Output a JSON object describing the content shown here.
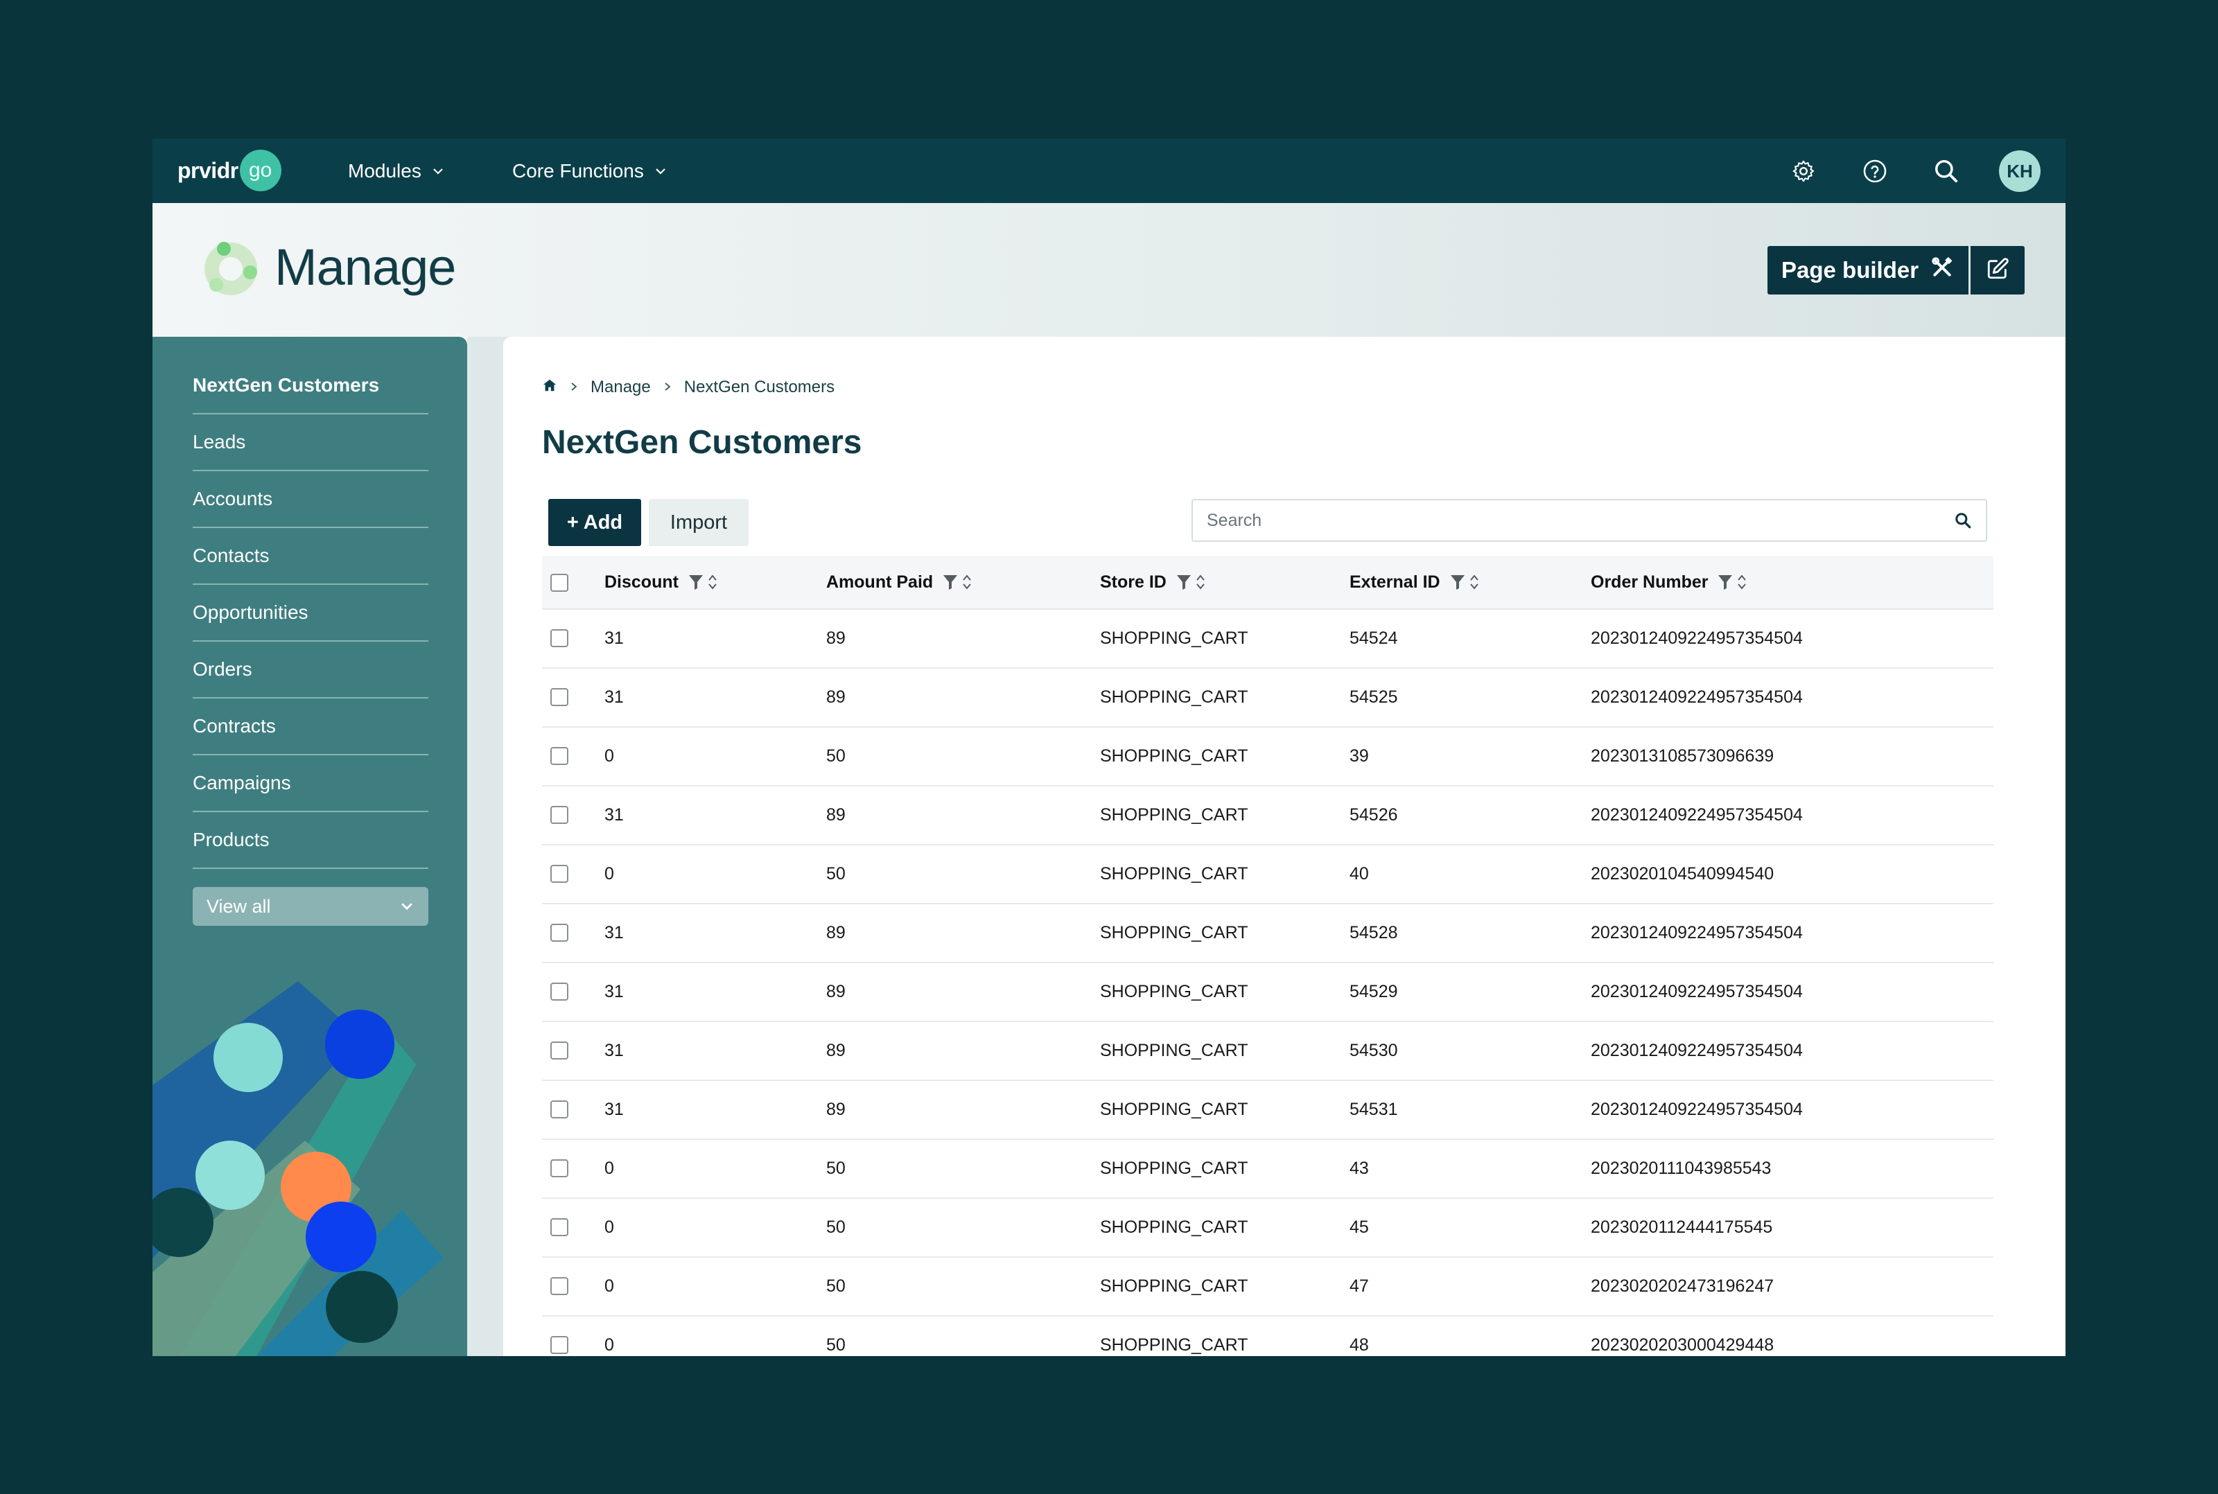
{
  "nav": {
    "logo_text": "prvidr",
    "logo_badge": "go",
    "menus": [
      "Modules",
      "Core Functions"
    ],
    "avatar_initials": "KH"
  },
  "header": {
    "title": "Manage",
    "page_builder_label": "Page builder"
  },
  "sidebar": {
    "items": [
      "NextGen Customers",
      "Leads",
      "Accounts",
      "Contacts",
      "Opportunities",
      "Orders",
      "Contracts",
      "Campaigns",
      "Products"
    ],
    "view_all_label": "View all"
  },
  "breadcrumb": [
    "Manage",
    "NextGen Customers"
  ],
  "page_title": "NextGen Customers",
  "toolbar": {
    "add_label": "+ Add",
    "import_label": "Import",
    "search_placeholder": "Search"
  },
  "table": {
    "columns": [
      "Discount",
      "Amount Paid",
      "Store ID",
      "External ID",
      "Order Number"
    ],
    "rows": [
      [
        "31",
        "89",
        "SHOPPING_CART",
        "54524",
        "20230124092249573545​04"
      ],
      [
        "31",
        "89",
        "SHOPPING_CART",
        "54525",
        "2023012409224957354504"
      ],
      [
        "0",
        "50",
        "SHOPPING_CART",
        "39",
        "2023013108573096639"
      ],
      [
        "31",
        "89",
        "SHOPPING_CART",
        "54526",
        "2023012409224957354504"
      ],
      [
        "0",
        "50",
        "SHOPPING_CART",
        "40",
        "2023020104540994540"
      ],
      [
        "31",
        "89",
        "SHOPPING_CART",
        "54528",
        "2023012409224957354504"
      ],
      [
        "31",
        "89",
        "SHOPPING_CART",
        "54529",
        "2023012409224957354504"
      ],
      [
        "31",
        "89",
        "SHOPPING_CART",
        "54530",
        "2023012409224957354504"
      ],
      [
        "31",
        "89",
        "SHOPPING_CART",
        "54531",
        "2023012409224957354504"
      ],
      [
        "0",
        "50",
        "SHOPPING_CART",
        "43",
        "2023020111043985543"
      ],
      [
        "0",
        "50",
        "SHOPPING_CART",
        "45",
        "2023020112444175545"
      ],
      [
        "0",
        "50",
        "SHOPPING_CART",
        "47",
        "2023020202473196247"
      ],
      [
        "0",
        "50",
        "SHOPPING_CART",
        "48",
        "2023020203000429448"
      ]
    ]
  },
  "colors": {
    "nav_bg": "#0a3f4a",
    "sidebar_bg": "#3f7e80",
    "primary_button": "#0b3441",
    "page_bg": "#0a343b"
  }
}
